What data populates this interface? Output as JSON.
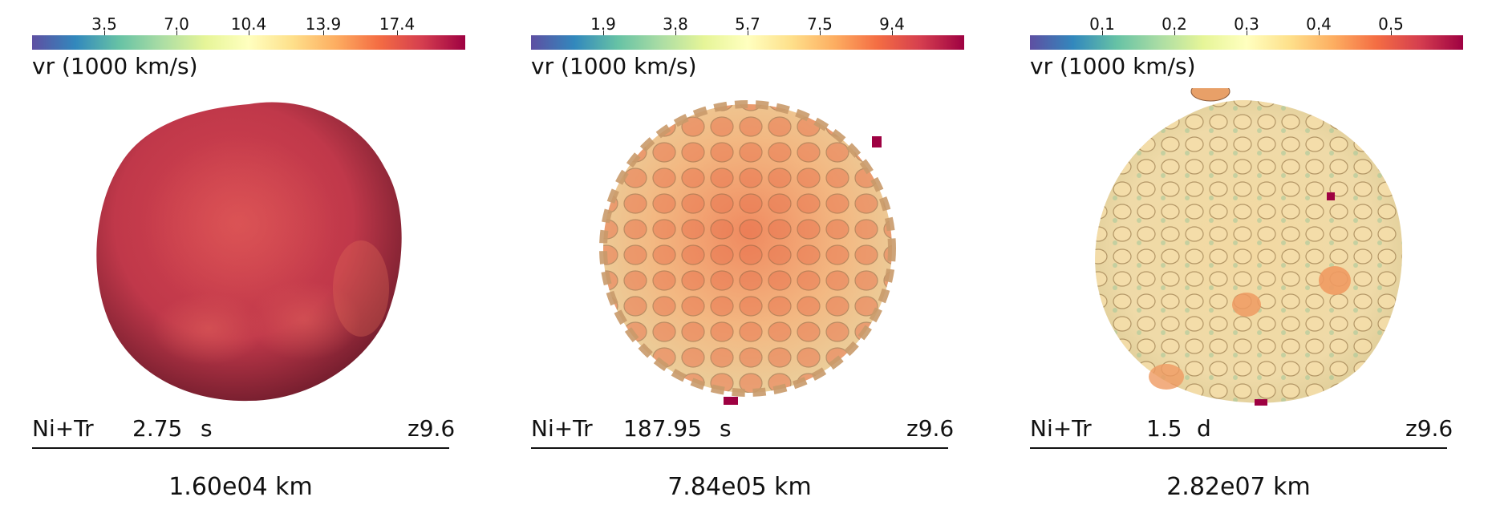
{
  "panels": [
    {
      "colorbar": {
        "ticks": [
          "3.5",
          "7.0",
          "10.4",
          "13.9",
          "17.4"
        ],
        "label": "vr (1000 km/s)",
        "colormap": [
          "#5e4fa2",
          "#3288bd",
          "#66c2a5",
          "#abdda4",
          "#e6f598",
          "#ffffbf",
          "#fee08b",
          "#fdae61",
          "#f46d43",
          "#d53e4f",
          "#9e0142"
        ]
      },
      "species": "Ni+Tr",
      "time_value": "2.75",
      "time_unit": "s",
      "model": "z9.6",
      "scale": "1.60e04 km",
      "surface_color": "#c0384a"
    },
    {
      "colorbar": {
        "ticks": [
          "1.9",
          "3.8",
          "5.7",
          "7.5",
          "9.4"
        ],
        "label": "vr (1000 km/s)",
        "colormap": [
          "#5e4fa2",
          "#3288bd",
          "#66c2a5",
          "#abdda4",
          "#e6f598",
          "#ffffbf",
          "#fee08b",
          "#fdae61",
          "#f46d43",
          "#d53e4f",
          "#9e0142"
        ]
      },
      "species": "Ni+Tr",
      "time_value": "187.95",
      "time_unit": "s",
      "model": "z9.6",
      "scale": "7.84e05 km",
      "surface_color": "#f0a070"
    },
    {
      "colorbar": {
        "ticks": [
          "0.1",
          "0.2",
          "0.3",
          "0.4",
          "0.5"
        ],
        "label": "vr (1000 km/s)",
        "colormap": [
          "#5e4fa2",
          "#3288bd",
          "#66c2a5",
          "#abdda4",
          "#e6f598",
          "#ffffbf",
          "#fee08b",
          "#fdae61",
          "#f46d43",
          "#d53e4f",
          "#9e0142"
        ]
      },
      "species": "Ni+Tr",
      "time_value": "1.5",
      "time_unit": "d",
      "model": "z9.6",
      "scale": "2.82e07 km",
      "surface_color": "#f0d8a0"
    }
  ]
}
